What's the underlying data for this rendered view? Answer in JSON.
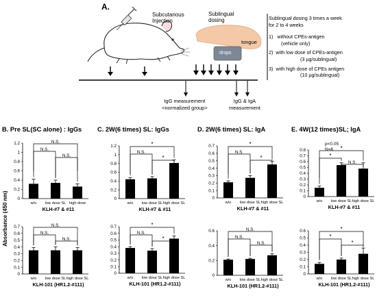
{
  "panel_a": {
    "label": "A.",
    "subcutaneous": [
      "Subcutanous",
      "Injection"
    ],
    "sublingual": [
      "Sublingual",
      "dosing"
    ],
    "tongue": "tongue",
    "drops": "drops",
    "igg_measure": [
      "IgG measurement",
      "<normalized group>"
    ],
    "igg_iga_measure": [
      "IgG & IgA",
      "measurement"
    ],
    "dosing_header": [
      "Sublingual dosing 3 times a week",
      "for 2 to 4 weeks"
    ],
    "dosing_items": [
      {
        "num": "1)",
        "lines": [
          "without CPEs-antigen",
          "(vehicle only)"
        ]
      },
      {
        "num": "2)",
        "lines": [
          "with low dose of CPEs-antigen",
          "(3 µg/sublingual)"
        ]
      },
      {
        "num": "3)",
        "lines": [
          "with high dose of CPEs antigen",
          "(10 µg/sublingual)"
        ]
      }
    ]
  },
  "y_axis_label": "Absorbance (450 nm)",
  "panel_titles": {
    "b": "B. Pre SL(SC alone) : IgGs",
    "c": "C. 2W(6 times) SL: IgGs",
    "d": "D. 2W(6 times) SL: IgA",
    "e": "E. 4W(12 times)SL; IgA"
  },
  "stats_note": [
    "p<0.05",
    "N=6"
  ],
  "chart_data": [
    {
      "id": "B-top",
      "type": "bar",
      "categories": [
        "w/o",
        "low dose SL",
        "high dose"
      ],
      "values": [
        0.32,
        0.34,
        0.26
      ],
      "errors": [
        0.1,
        0.06,
        0.06
      ],
      "ylim": [
        0,
        1.2
      ],
      "yticks": [
        0,
        0.2,
        0.4,
        0.6,
        0.8,
        1,
        1.2
      ],
      "ticklabels": [
        "0",
        "0.2",
        "0.4",
        "0.6",
        "0.8",
        "1",
        "1.2"
      ],
      "strain": "KLH-#7 & #11",
      "sig": [
        {
          "a": 0,
          "b": 2,
          "label": "N.S."
        },
        {
          "a": 0,
          "b": 1,
          "label": "N.S."
        },
        {
          "a": 1,
          "b": 2,
          "label": "N.S."
        }
      ]
    },
    {
      "id": "C-top",
      "type": "bar",
      "categories": [
        "w/o",
        "low dose SL",
        "high dose SL"
      ],
      "values": [
        0.44,
        0.46,
        0.81
      ],
      "errors": [
        0.04,
        0.04,
        0.07
      ],
      "ylim": [
        0,
        1.2
      ],
      "yticks": [
        0,
        0.2,
        0.4,
        0.6,
        0.8,
        1,
        1.2
      ],
      "ticklabels": [
        "0",
        "0.2",
        "0.4",
        "0.6",
        "0.8",
        "1",
        "1.2"
      ],
      "strain": "KLH-#7 & #11",
      "sig": [
        {
          "a": 0,
          "b": 2,
          "label": "*"
        },
        {
          "a": 0,
          "b": 1,
          "label": "N.S."
        },
        {
          "a": 1,
          "b": 2,
          "label": "*"
        }
      ]
    },
    {
      "id": "D-top",
      "type": "bar",
      "categories": [
        "w/o",
        "low dose SL",
        "high dose SL"
      ],
      "values": [
        0.21,
        0.27,
        0.45
      ],
      "errors": [
        0.02,
        0.03,
        0.04
      ],
      "ylim": [
        0,
        0.7
      ],
      "yticks": [
        0,
        0.1,
        0.2,
        0.3,
        0.4,
        0.5,
        0.6,
        0.7
      ],
      "ticklabels": [
        "0",
        "0.1",
        "0.2",
        "0.3",
        "0.4",
        "0.5",
        "0.6",
        "0.7"
      ],
      "strain": "KLH-#7 & #11",
      "sig": [
        {
          "a": 0,
          "b": 2,
          "label": "*"
        },
        {
          "a": 0,
          "b": 1,
          "label": "N.S."
        },
        {
          "a": 1,
          "b": 2,
          "label": "*"
        }
      ]
    },
    {
      "id": "E-top",
      "type": "bar",
      "categories": [
        "w/o",
        "low dose SL",
        "high dose SL"
      ],
      "values": [
        0.15,
        0.54,
        0.48
      ],
      "errors": [
        0.03,
        0.04,
        0.1
      ],
      "ylim": [
        0,
        0.8
      ],
      "yticks": [
        0,
        0.1,
        0.2,
        0.3,
        0.4,
        0.5,
        0.6,
        0.7,
        0.8
      ],
      "ticklabels": [
        "0",
        "0.1",
        "0.2",
        "0.3",
        "0.4",
        "0.5",
        "0.6",
        "0.7",
        "0.8"
      ],
      "strain": "KLH-#7 & #11",
      "sig": [
        {
          "a": 0,
          "b": 2,
          "label": "*"
        },
        {
          "a": 0,
          "b": 1,
          "label": "*"
        },
        {
          "a": 1,
          "b": 2,
          "label": "N.S."
        }
      ]
    },
    {
      "id": "B-bot",
      "type": "bar",
      "categories": [
        "w/o",
        "low dose SL",
        "high dose SL"
      ],
      "values": [
        0.35,
        0.35,
        0.35
      ],
      "errors": [
        0.04,
        0.05,
        0.04
      ],
      "ylim": [
        0,
        0.7
      ],
      "yticks": [
        0,
        0.1,
        0.2,
        0.3,
        0.4,
        0.5,
        0.6,
        0.7
      ],
      "ticklabels": [
        "0",
        "0.1",
        "0.2",
        "0.3",
        "0.4",
        "0.5",
        "0.6",
        "0.7"
      ],
      "strain": "KLH-101 (HR1.2-#111)",
      "sig": [
        {
          "a": 0,
          "b": 2,
          "label": "N.S."
        },
        {
          "a": 0,
          "b": 1,
          "label": "N.S."
        },
        {
          "a": 1,
          "b": 2,
          "label": "N.S."
        }
      ]
    },
    {
      "id": "C-bot",
      "type": "bar",
      "categories": [
        "w/o",
        "low dose SL",
        "high dose SL"
      ],
      "values": [
        0.38,
        0.34,
        0.52
      ],
      "errors": [
        0.02,
        0.03,
        0.04
      ],
      "ylim": [
        0,
        0.7
      ],
      "yticks": [
        0,
        0.1,
        0.2,
        0.3,
        0.4,
        0.5,
        0.6,
        0.7
      ],
      "ticklabels": [
        "0",
        "0.1",
        "0.2",
        "0.3",
        "0.4",
        "0.5",
        "0.6",
        "0.7"
      ],
      "strain": "KLH-101 (HR1.2-#111)",
      "sig": [
        {
          "a": 0,
          "b": 2,
          "label": "*"
        },
        {
          "a": 0,
          "b": 1,
          "label": "N.S."
        },
        {
          "a": 1,
          "b": 2,
          "label": "*"
        }
      ]
    },
    {
      "id": "D-bot",
      "type": "bar",
      "categories": [
        "w/o",
        "low dose SL",
        "high dose SL"
      ],
      "values": [
        0.21,
        0.22,
        0.27
      ],
      "errors": [
        0.01,
        0.01,
        0.02
      ],
      "ylim": [
        0,
        0.6
      ],
      "yticks": [
        0,
        0.2,
        0.4,
        0.6
      ],
      "ticklabels": [
        "0",
        "0.2",
        "0.4",
        "0.6"
      ],
      "strain": "KLH-101 (HR1.2-#111)",
      "sig": [
        {
          "a": 0,
          "b": 2,
          "label": "N.S."
        },
        {
          "a": 0,
          "b": 1,
          "label": "N.S."
        },
        {
          "a": 1,
          "b": 2,
          "label": "N.S."
        }
      ]
    },
    {
      "id": "E-bot",
      "type": "bar",
      "categories": [
        "w/o",
        "low dose SL",
        "high dose SL"
      ],
      "values": [
        0.14,
        0.2,
        0.28
      ],
      "errors": [
        0.02,
        0.02,
        0.08
      ],
      "ylim": [
        0,
        0.6
      ],
      "yticks": [
        0,
        0.1,
        0.2,
        0.3,
        0.4,
        0.5,
        0.6
      ],
      "ticklabels": [
        "0",
        "0.1",
        "0.2",
        "0.3",
        "0.4",
        "0.5",
        "0.6"
      ],
      "strain": "KLH-101 (HR1.2-#111)",
      "sig": [
        {
          "a": 0,
          "b": 2,
          "label": "*"
        },
        {
          "a": 0,
          "b": 1,
          "label": "*"
        },
        {
          "a": 1,
          "b": 2,
          "label": "*"
        }
      ]
    }
  ]
}
